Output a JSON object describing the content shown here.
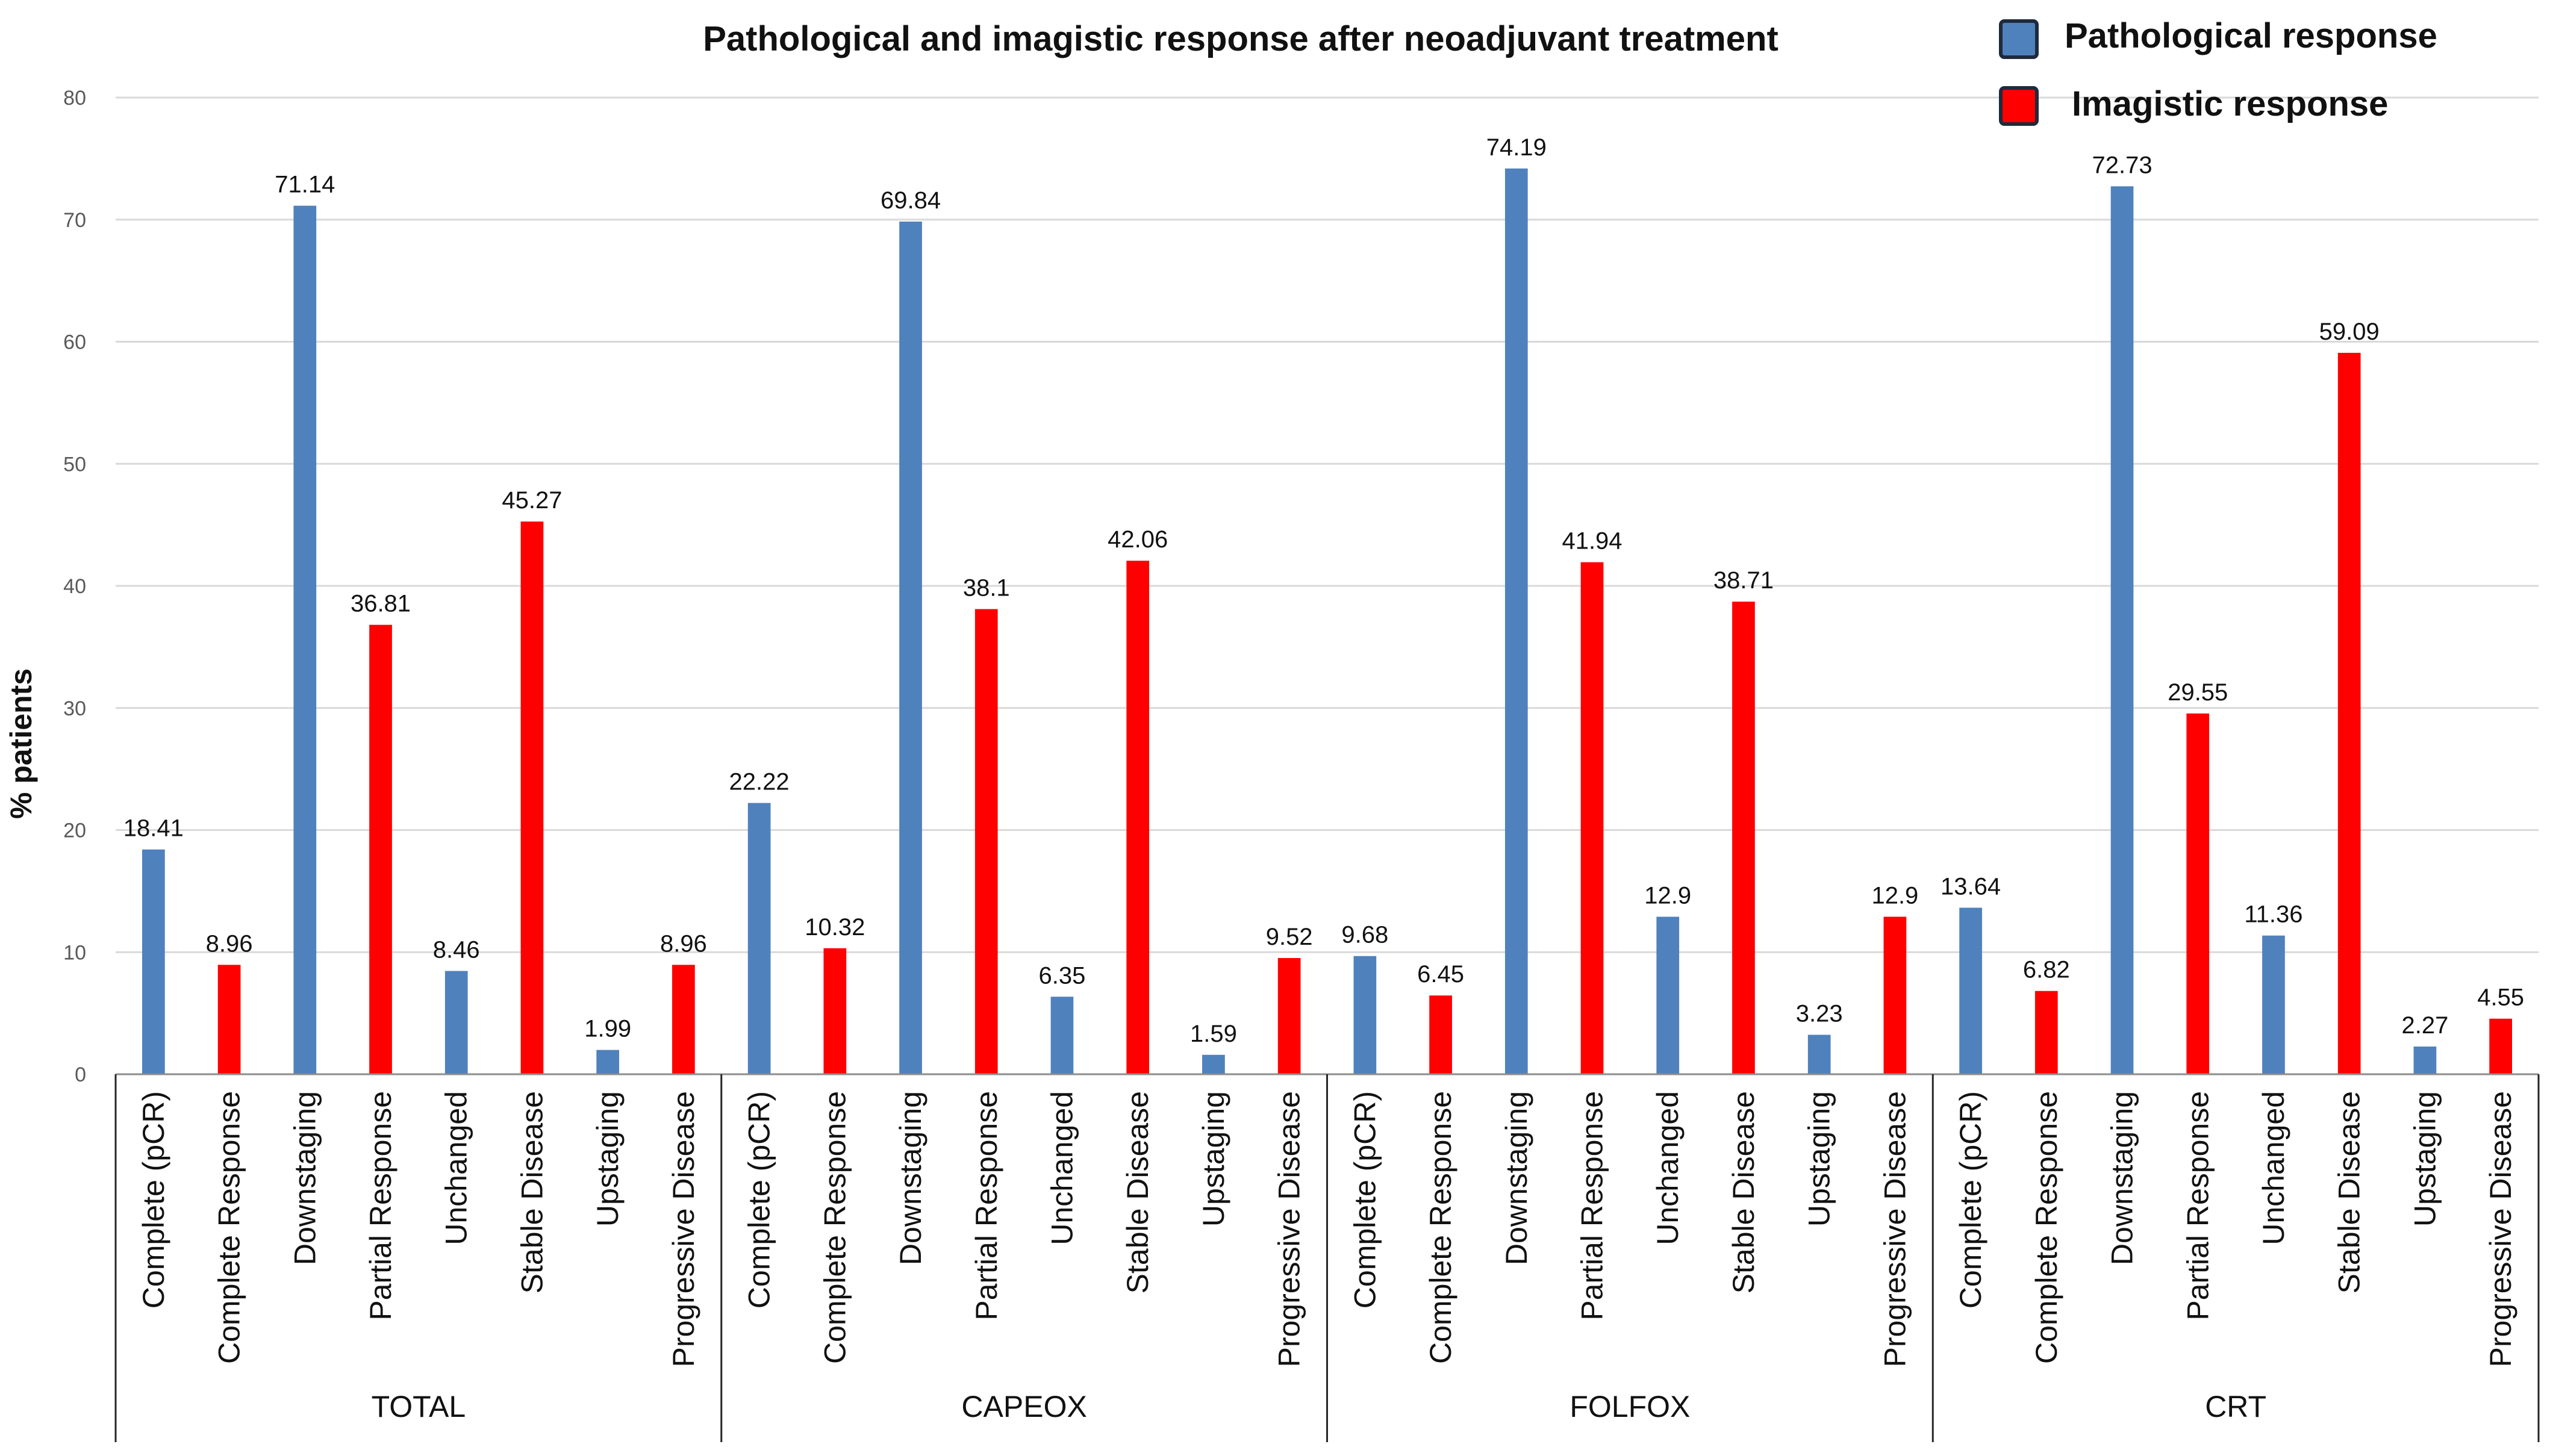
{
  "chart_data": {
    "type": "bar",
    "title": "Pathological and imagistic response after neoadjuvant treatment",
    "ylabel": "% patients",
    "xlabel": "",
    "ylim": [
      0,
      80
    ],
    "yticks": [
      0,
      10,
      20,
      30,
      40,
      50,
      60,
      70,
      80
    ],
    "grid": true,
    "legend_position": "top-right",
    "legend": [
      {
        "name": "Pathological response",
        "color": "#4f81bd"
      },
      {
        "name": "Imagistic response",
        "color": "#ff0000"
      }
    ],
    "groups": [
      {
        "name": "TOTAL",
        "bars": [
          {
            "category": "Complete (pCR)",
            "series": "Pathological response",
            "value": 18.41,
            "label": "18.41"
          },
          {
            "category": "Complete Response",
            "series": "Imagistic response",
            "value": 8.96,
            "label": "8.96"
          },
          {
            "category": "Downstaging",
            "series": "Pathological response",
            "value": 71.14,
            "label": "71.14"
          },
          {
            "category": "Partial Response",
            "series": "Imagistic response",
            "value": 36.81,
            "label": "36.81"
          },
          {
            "category": "Unchanged",
            "series": "Pathological response",
            "value": 8.46,
            "label": "8.46"
          },
          {
            "category": "Stable Disease",
            "series": "Imagistic response",
            "value": 45.27,
            "label": "45.27"
          },
          {
            "category": "Upstaging",
            "series": "Pathological response",
            "value": 1.99,
            "label": "1.99"
          },
          {
            "category": "Progressive Disease",
            "series": "Imagistic response",
            "value": 8.96,
            "label": "8.96"
          }
        ]
      },
      {
        "name": "CAPEOX",
        "bars": [
          {
            "category": "Complete (pCR)",
            "series": "Pathological response",
            "value": 22.22,
            "label": "22.22"
          },
          {
            "category": "Complete Response",
            "series": "Imagistic response",
            "value": 10.32,
            "label": "10.32"
          },
          {
            "category": "Downstaging",
            "series": "Pathological response",
            "value": 69.84,
            "label": "69.84"
          },
          {
            "category": "Partial Response",
            "series": "Imagistic response",
            "value": 38.1,
            "label": "38.1"
          },
          {
            "category": "Unchanged",
            "series": "Pathological response",
            "value": 6.35,
            "label": "6.35"
          },
          {
            "category": "Stable Disease",
            "series": "Imagistic response",
            "value": 42.06,
            "label": "42.06"
          },
          {
            "category": "Upstaging",
            "series": "Pathological response",
            "value": 1.59,
            "label": "1.59"
          },
          {
            "category": "Progressive Disease",
            "series": "Imagistic response",
            "value": 9.52,
            "label": "9.52"
          }
        ]
      },
      {
        "name": "FOLFOX",
        "bars": [
          {
            "category": "Complete (pCR)",
            "series": "Pathological response",
            "value": 9.68,
            "label": "9.68"
          },
          {
            "category": "Complete Response",
            "series": "Imagistic response",
            "value": 6.45,
            "label": "6.45"
          },
          {
            "category": "Downstaging",
            "series": "Pathological response",
            "value": 74.19,
            "label": "74.19"
          },
          {
            "category": "Partial Response",
            "series": "Imagistic response",
            "value": 41.94,
            "label": "41.94"
          },
          {
            "category": "Unchanged",
            "series": "Pathological response",
            "value": 12.9,
            "label": "12.9"
          },
          {
            "category": "Stable Disease",
            "series": "Imagistic response",
            "value": 38.71,
            "label": "38.71"
          },
          {
            "category": "Upstaging",
            "series": "Pathological response",
            "value": 3.23,
            "label": "3.23"
          },
          {
            "category": "Progressive Disease",
            "series": "Imagistic response",
            "value": 12.9,
            "label": "12.9"
          }
        ]
      },
      {
        "name": "CRT",
        "bars": [
          {
            "category": "Complete (pCR)",
            "series": "Pathological response",
            "value": 13.64,
            "label": "13.64"
          },
          {
            "category": "Complete Response",
            "series": "Imagistic response",
            "value": 6.82,
            "label": "6.82"
          },
          {
            "category": "Downstaging",
            "series": "Pathological response",
            "value": 72.73,
            "label": "72.73"
          },
          {
            "category": "Partial Response",
            "series": "Imagistic response",
            "value": 29.55,
            "label": "29.55"
          },
          {
            "category": "Unchanged",
            "series": "Pathological response",
            "value": 11.36,
            "label": "11.36"
          },
          {
            "category": "Stable Disease",
            "series": "Imagistic response",
            "value": 59.09,
            "label": "59.09"
          },
          {
            "category": "Upstaging",
            "series": "Pathological response",
            "value": 2.27,
            "label": "2.27"
          },
          {
            "category": "Progressive Disease",
            "series": "Imagistic response",
            "value": 4.55,
            "label": "4.55"
          }
        ]
      }
    ]
  }
}
